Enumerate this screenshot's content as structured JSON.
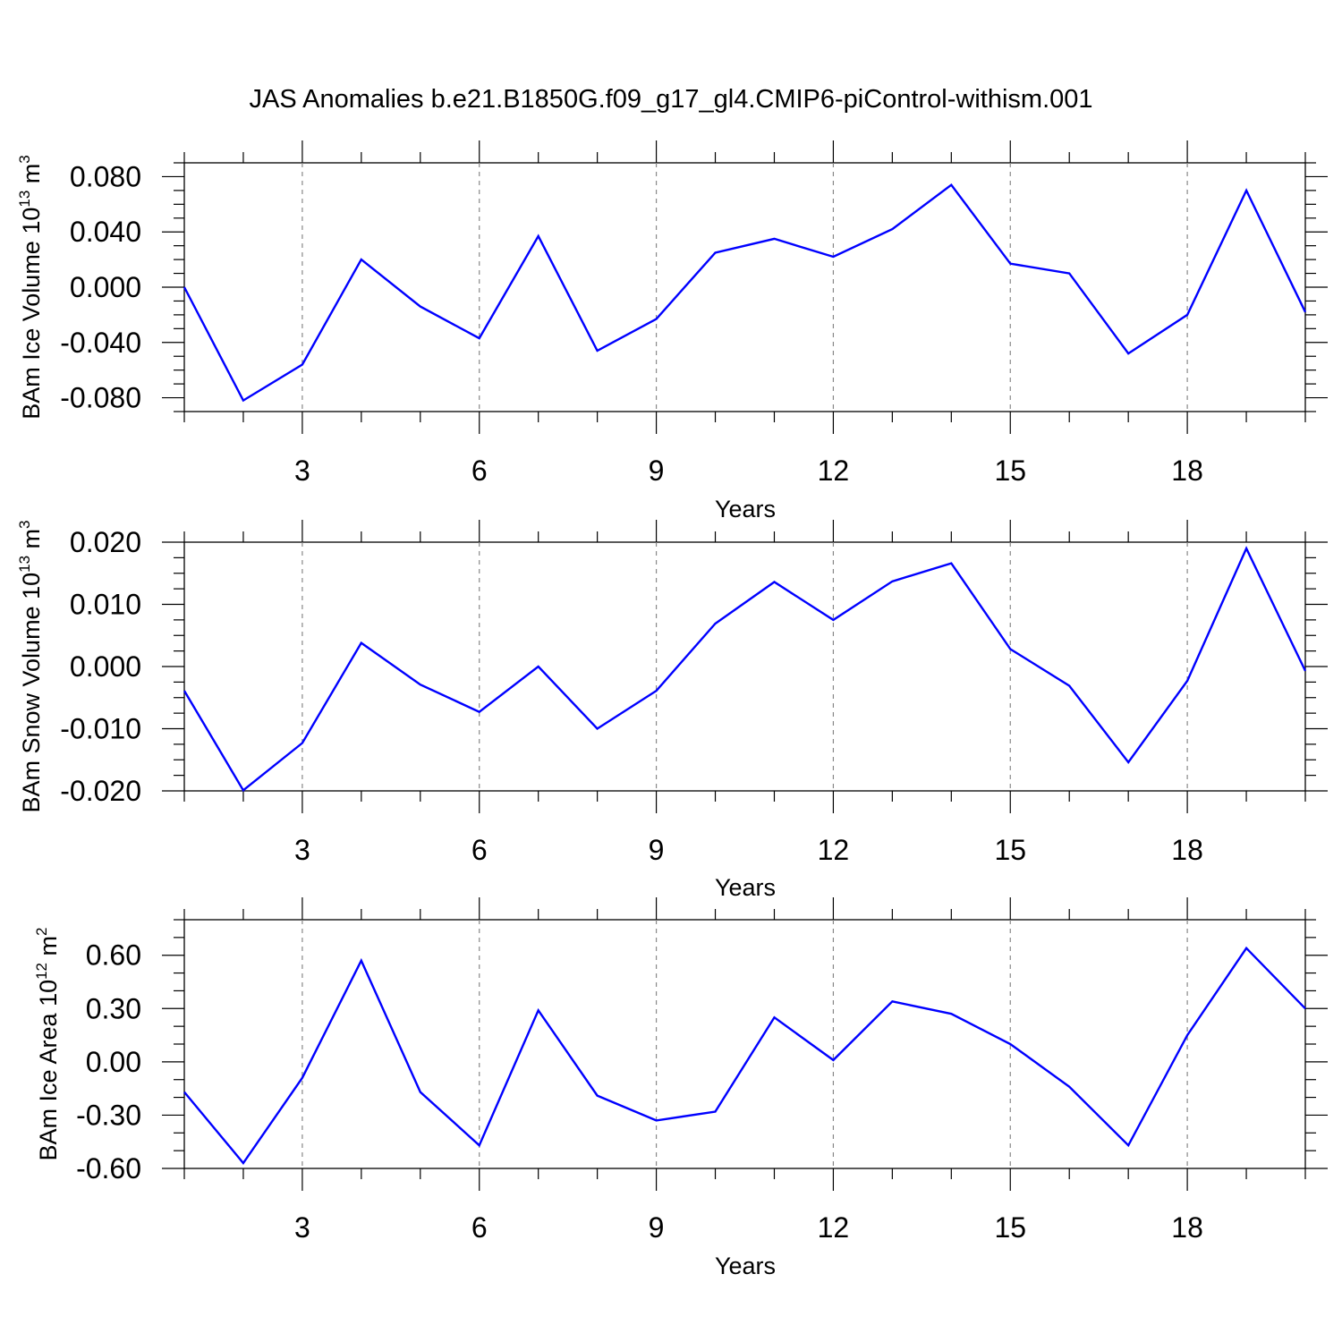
{
  "title": "JAS Anomalies b.e21.B1850G.f09_g17_gl4.CMIP6-piControl-withism.001",
  "colors": {
    "line": "#0000ff",
    "grid": "#888888"
  },
  "chart_data": [
    {
      "type": "line",
      "name": "ice-volume",
      "ylabel": {
        "text": "BAm Ice Volume 10",
        "exp": "13",
        "unit": "m",
        "unit_exp": "3"
      },
      "xlabel": "Years",
      "xlim": [
        1,
        20
      ],
      "ylim": [
        -0.09,
        0.09
      ],
      "x_ticks": [
        3,
        6,
        9,
        12,
        15,
        18
      ],
      "x_tick_labels": [
        "3",
        "6",
        "9",
        "12",
        "15",
        "18"
      ],
      "y_ticks": [
        -0.08,
        -0.04,
        0.0,
        0.04,
        0.08
      ],
      "y_tick_labels": [
        "-0.080",
        "-0.040",
        "0.000",
        "0.040",
        "0.080"
      ],
      "y_minor_step": 0.01,
      "x": [
        1,
        2,
        3,
        4,
        5,
        6,
        7,
        8,
        9,
        10,
        11,
        12,
        13,
        14,
        15,
        16,
        17,
        18,
        19,
        20
      ],
      "values": [
        0.0,
        -0.082,
        -0.056,
        0.02,
        -0.014,
        -0.037,
        0.037,
        -0.046,
        -0.023,
        0.025,
        0.035,
        0.022,
        0.042,
        0.074,
        0.017,
        0.01,
        -0.048,
        -0.02,
        0.07,
        -0.018
      ]
    },
    {
      "type": "line",
      "name": "snow-volume",
      "ylabel": {
        "text": "BAm Snow Volume 10",
        "exp": "13",
        "unit": "m",
        "unit_exp": "3"
      },
      "xlabel": "Years",
      "xlim": [
        1,
        20
      ],
      "ylim": [
        -0.02,
        0.02
      ],
      "x_ticks": [
        3,
        6,
        9,
        12,
        15,
        18
      ],
      "x_tick_labels": [
        "3",
        "6",
        "9",
        "12",
        "15",
        "18"
      ],
      "y_ticks": [
        -0.02,
        -0.01,
        0.0,
        0.01,
        0.02
      ],
      "y_tick_labels": [
        "-0.020",
        "-0.010",
        "0.000",
        "0.010",
        "0.020"
      ],
      "y_minor_step": 0.0025,
      "x": [
        1,
        2,
        3,
        4,
        5,
        6,
        7,
        8,
        9,
        10,
        11,
        12,
        13,
        14,
        15,
        16,
        17,
        18,
        19,
        20
      ],
      "values": [
        -0.0039,
        -0.0199,
        -0.0123,
        0.0038,
        -0.0029,
        -0.0073,
        0.0,
        -0.01,
        -0.0039,
        0.0069,
        0.0136,
        0.0075,
        0.0137,
        0.0166,
        0.0028,
        -0.0031,
        -0.0154,
        -0.0023,
        0.019,
        -0.0007
      ]
    },
    {
      "type": "line",
      "name": "ice-area",
      "ylabel": {
        "text": "BAm Ice Area 10",
        "exp": "12",
        "unit": "m",
        "unit_exp": "2"
      },
      "xlabel": "Years",
      "xlim": [
        1,
        20
      ],
      "ylim": [
        -0.6,
        0.8
      ],
      "x_ticks": [
        3,
        6,
        9,
        12,
        15,
        18
      ],
      "x_tick_labels": [
        "3",
        "6",
        "9",
        "12",
        "15",
        "18"
      ],
      "y_ticks": [
        -0.6,
        -0.3,
        0.0,
        0.3,
        0.6
      ],
      "y_tick_labels": [
        "-0.60",
        "-0.30",
        "0.00",
        "0.30",
        "0.60"
      ],
      "y_minor_step": 0.1,
      "x": [
        1,
        2,
        3,
        4,
        5,
        6,
        7,
        8,
        9,
        10,
        11,
        12,
        13,
        14,
        15,
        16,
        17,
        18,
        19,
        20
      ],
      "values": [
        -0.17,
        -0.57,
        -0.09,
        0.57,
        -0.17,
        -0.47,
        0.29,
        -0.19,
        -0.33,
        -0.28,
        0.25,
        0.01,
        0.34,
        0.27,
        0.1,
        -0.14,
        -0.47,
        0.15,
        0.64,
        0.3
      ]
    }
  ]
}
